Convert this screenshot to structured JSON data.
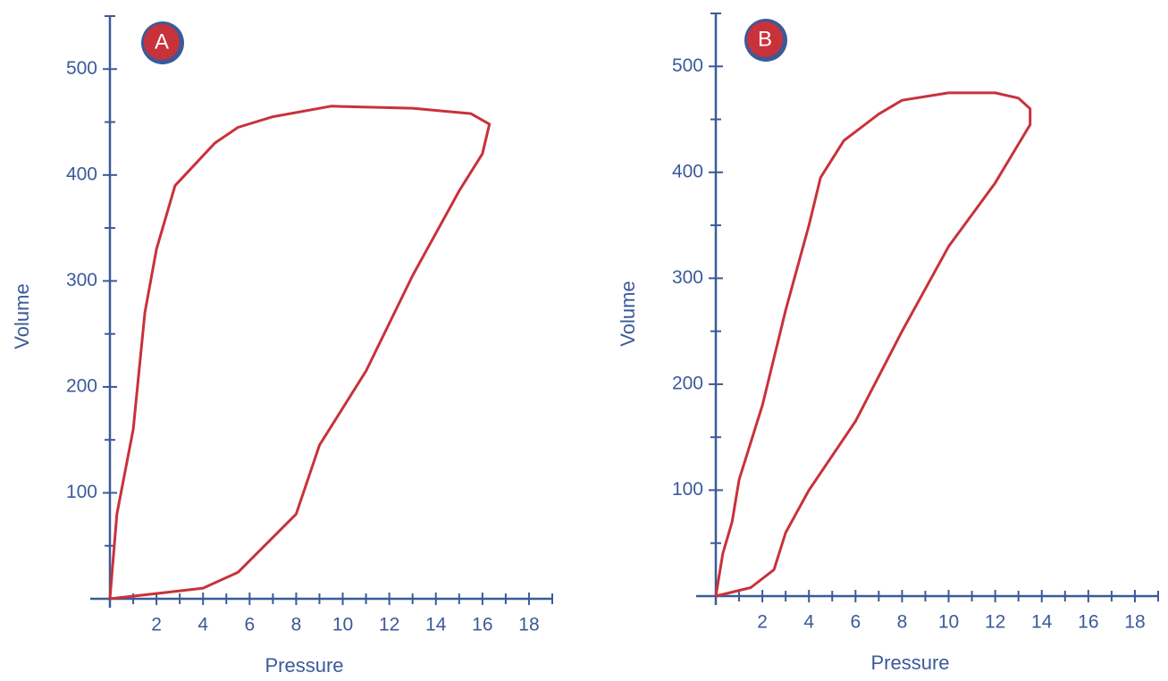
{
  "chart_data": [
    {
      "type": "line",
      "badge": "A",
      "x_label": "Pressure",
      "y_label": "Volume",
      "xlim": [
        0,
        19
      ],
      "ylim": [
        0,
        550
      ],
      "xticks": [
        2,
        4,
        6,
        8,
        10,
        12,
        14,
        16,
        18
      ],
      "xminorticks": [
        1,
        3,
        5,
        7,
        9,
        11,
        13,
        15,
        17,
        19
      ],
      "yticks": [
        100,
        200,
        300,
        400,
        500
      ],
      "yminorticks": [
        50,
        150,
        250,
        350,
        450,
        550
      ],
      "color": "#c8323a",
      "x": [
        0,
        0.3,
        1,
        1.5,
        2,
        2.8,
        4.5,
        5.5,
        7,
        9.5,
        13,
        15.5,
        16.3,
        16,
        15,
        13,
        11,
        9,
        8,
        5.5,
        4,
        2,
        0
      ],
      "values": [
        0,
        80,
        160,
        270,
        330,
        390,
        430,
        445,
        455,
        465,
        463,
        458,
        448,
        420,
        385,
        305,
        215,
        145,
        80,
        25,
        10,
        5,
        0
      ]
    },
    {
      "type": "line",
      "badge": "B",
      "x_label": "Pressure",
      "y_label": "Volume",
      "xlim": [
        0,
        19
      ],
      "ylim": [
        0,
        550
      ],
      "xticks": [
        2,
        4,
        6,
        8,
        10,
        12,
        14,
        16,
        18
      ],
      "xminorticks": [
        1,
        3,
        5,
        7,
        9,
        11,
        13,
        15,
        17,
        19
      ],
      "yticks": [
        100,
        200,
        300,
        400,
        500
      ],
      "yminorticks": [
        50,
        150,
        250,
        350,
        450,
        550
      ],
      "color": "#c8323a",
      "x": [
        0,
        0.3,
        0.7,
        1,
        2,
        3,
        4,
        4.5,
        5.5,
        7,
        8,
        10,
        12,
        13,
        13.5,
        13.5,
        12,
        10,
        8,
        6,
        4,
        3,
        2.5,
        1.5,
        0
      ],
      "values": [
        0,
        40,
        70,
        110,
        180,
        270,
        350,
        395,
        430,
        455,
        468,
        475,
        475,
        470,
        460,
        445,
        390,
        330,
        250,
        165,
        100,
        60,
        25,
        8,
        0
      ]
    }
  ]
}
